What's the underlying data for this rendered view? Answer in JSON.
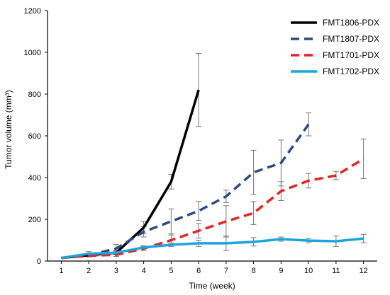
{
  "chart_data": {
    "type": "line",
    "xlabel": "Time (week)",
    "ylabel": "Tumor volume (mm³)",
    "xlim": [
      0.5,
      12.5
    ],
    "ylim": [
      0,
      1200
    ],
    "x_ticks": [
      1,
      2,
      3,
      4,
      5,
      6,
      7,
      8,
      9,
      10,
      11,
      12
    ],
    "y_ticks": [
      0,
      200,
      400,
      600,
      800,
      1000,
      1200
    ],
    "legend_position": "top-right",
    "grid": false,
    "series": [
      {
        "name": "FMT1806-PDX",
        "color": "#000000",
        "dash": "solid",
        "x": [
          1,
          2,
          3,
          4,
          5,
          6
        ],
        "y": [
          15,
          28,
          40,
          160,
          380,
          820
        ],
        "err": [
          0,
          8,
          10,
          30,
          35,
          175
        ]
      },
      {
        "name": "FMT1807-PDX",
        "color": "#2e4a86",
        "dash": "dashed",
        "x": [
          1,
          2,
          3,
          4,
          5,
          6,
          7,
          8,
          9,
          10
        ],
        "y": [
          15,
          28,
          60,
          140,
          190,
          240,
          310,
          425,
          470,
          655
        ],
        "err": [
          0,
          8,
          20,
          25,
          60,
          45,
          30,
          105,
          110,
          55
        ]
      },
      {
        "name": "FMT1701-PDX",
        "color": "#e52320",
        "dash": "dashed",
        "x": [
          1,
          2,
          3,
          4,
          5,
          6,
          7,
          8,
          9,
          10,
          11,
          12
        ],
        "y": [
          15,
          25,
          30,
          60,
          100,
          145,
          190,
          230,
          335,
          385,
          410,
          490
        ],
        "err": [
          0,
          5,
          8,
          10,
          25,
          35,
          75,
          55,
          45,
          35,
          20,
          95
        ]
      },
      {
        "name": "FMT1702-PDX",
        "color": "#1aa5dc",
        "dash": "solid",
        "x": [
          1,
          2,
          3,
          4,
          5,
          6,
          7,
          8,
          9,
          10,
          11,
          12
        ],
        "y": [
          15,
          35,
          40,
          65,
          78,
          85,
          85,
          92,
          105,
          98,
          95,
          108
        ],
        "err": [
          0,
          10,
          8,
          8,
          8,
          15,
          35,
          20,
          10,
          10,
          25,
          20
        ]
      }
    ]
  }
}
